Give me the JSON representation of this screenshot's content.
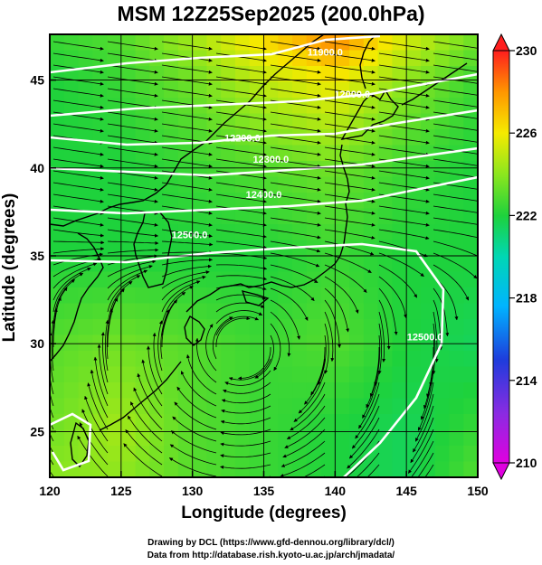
{
  "title": "MSM 12Z25Sep2025 (200.0hPa)",
  "chart_data": {
    "type": "heatmap",
    "title": "MSM 12Z25Sep2025 (200.0hPa)",
    "xlabel": "Longitude (degrees)",
    "ylabel": "Latitude  (degrees)",
    "xlim": [
      120,
      150
    ],
    "ylim": [
      22.4,
      47.6
    ],
    "x_ticks": [
      "120",
      "125",
      "130",
      "135",
      "140",
      "145",
      "150"
    ],
    "y_ticks": [
      "25",
      "30",
      "35",
      "40",
      "45"
    ],
    "grid": true,
    "colorbar": {
      "min": 210,
      "max": 230,
      "ticks": [
        "210",
        "214",
        "218",
        "222",
        "226",
        "230"
      ]
    },
    "contour_labels": [
      {
        "text": "11900.0",
        "lon": 139.3,
        "lat": 46.4
      },
      {
        "text": "12000.0",
        "lon": 141.2,
        "lat": 44.0
      },
      {
        "text": "12200.0",
        "lon": 133.5,
        "lat": 41.5
      },
      {
        "text": "12300.0",
        "lon": 135.5,
        "lat": 40.3
      },
      {
        "text": "12400.0",
        "lon": 135.0,
        "lat": 38.3
      },
      {
        "text": "12500.0",
        "lon": 129.8,
        "lat": 36.0
      },
      {
        "text": "12500.0",
        "lon": 146.3,
        "lat": 30.2
      }
    ],
    "circulation_center": {
      "lon": 133.5,
      "lat": 29.8
    },
    "field_values": {
      "lon": [
        120,
        125,
        130,
        135,
        140,
        145,
        150
      ],
      "lat": [
        47.6,
        45,
        40,
        35,
        30,
        25,
        22.4
      ],
      "temperature_k": [
        [
          222.5,
          223.0,
          224.5,
          226.5,
          228.5,
          225.5,
          223.5
        ],
        [
          222.0,
          222.5,
          223.5,
          225.0,
          226.0,
          224.0,
          222.5
        ],
        [
          222.0,
          222.0,
          222.5,
          223.0,
          223.5,
          222.5,
          222.0
        ],
        [
          222.0,
          222.0,
          222.0,
          222.0,
          222.5,
          222.0,
          222.0
        ],
        [
          223.0,
          223.5,
          223.0,
          222.5,
          223.0,
          222.0,
          221.5
        ],
        [
          223.5,
          224.5,
          223.0,
          222.5,
          222.0,
          221.5,
          222.5
        ],
        [
          224.0,
          224.0,
          223.0,
          222.5,
          222.0,
          221.5,
          223.0
        ]
      ]
    }
  },
  "credits": {
    "line1": "Drawing by DCL (https://www.gfd-dennou.org/library/dcl/)",
    "line2": "Data from http://database.rish.kyoto-u.ac.jp/arch/jmadata/"
  }
}
